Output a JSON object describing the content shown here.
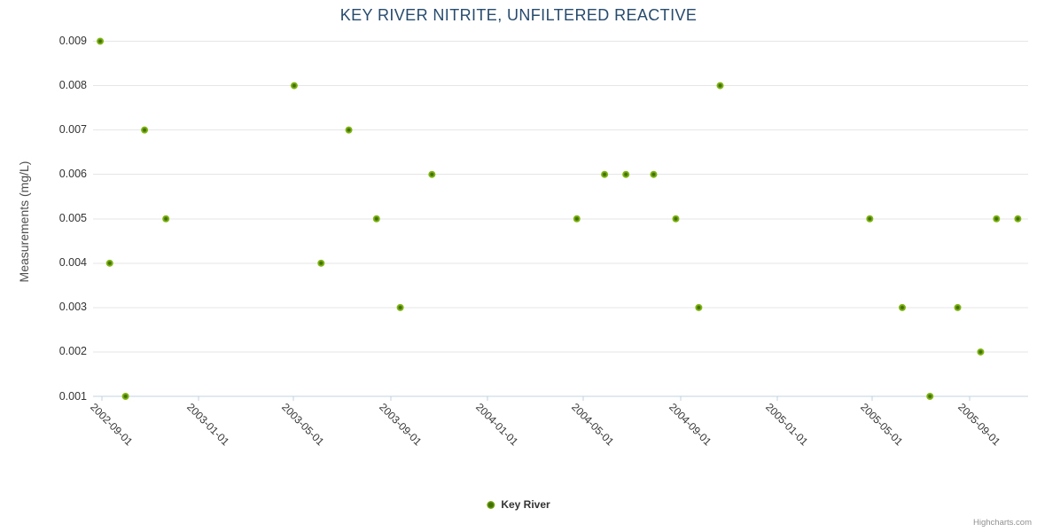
{
  "chart": {
    "credits": "Highcharts.com",
    "colors": {
      "title": "#274b6d",
      "label": "#333333",
      "axis_title": "#4d4d4d",
      "gridline": "#e6e6e6",
      "axis_line": "#c0d0e0",
      "tick_mark": "#c0d0e0",
      "credits": "#909090",
      "legend_text": "#333333",
      "marker_center": "#436f08",
      "marker_ring": "#77ad0b",
      "marker_edge": "#86bd1d"
    }
  },
  "chart_data": {
    "type": "scatter",
    "title": "KEY RIVER NITRITE, UNFILTERED REACTIVE",
    "xlabel": "",
    "ylabel": "Measurements (mg/L)",
    "ylim": [
      0.001,
      0.009
    ],
    "y_ticks": [
      0.001,
      0.002,
      0.003,
      0.004,
      0.005,
      0.006,
      0.007,
      0.008,
      0.009
    ],
    "x_range": [
      "2002-08-21",
      "2005-11-14"
    ],
    "x_ticks": [
      "2002-09-01",
      "2003-01-01",
      "2003-05-01",
      "2003-09-01",
      "2004-01-01",
      "2004-05-01",
      "2004-09-01",
      "2005-01-01",
      "2005-05-01",
      "2005-09-01"
    ],
    "grid": "horizontal",
    "legend_position": "bottom",
    "series": [
      {
        "name": "Key River",
        "points": [
          {
            "x": "2002-08-30",
            "y": 0.009
          },
          {
            "x": "2002-09-11",
            "y": 0.004
          },
          {
            "x": "2002-10-01",
            "y": 0.001
          },
          {
            "x": "2002-10-25",
            "y": 0.007
          },
          {
            "x": "2002-11-21",
            "y": 0.005
          },
          {
            "x": "2003-05-02",
            "y": 0.008
          },
          {
            "x": "2003-06-05",
            "y": 0.004
          },
          {
            "x": "2003-07-10",
            "y": 0.007
          },
          {
            "x": "2003-08-14",
            "y": 0.005
          },
          {
            "x": "2003-09-13",
            "y": 0.003
          },
          {
            "x": "2003-10-23",
            "y": 0.006
          },
          {
            "x": "2004-04-23",
            "y": 0.005
          },
          {
            "x": "2004-05-28",
            "y": 0.006
          },
          {
            "x": "2004-06-24",
            "y": 0.006
          },
          {
            "x": "2004-07-29",
            "y": 0.006
          },
          {
            "x": "2004-08-26",
            "y": 0.005
          },
          {
            "x": "2004-09-24",
            "y": 0.003
          },
          {
            "x": "2004-10-21",
            "y": 0.008
          },
          {
            "x": "2005-04-28",
            "y": 0.005
          },
          {
            "x": "2005-06-08",
            "y": 0.003
          },
          {
            "x": "2005-07-13",
            "y": 0.001
          },
          {
            "x": "2005-08-17",
            "y": 0.003
          },
          {
            "x": "2005-09-15",
            "y": 0.002
          },
          {
            "x": "2005-10-05",
            "y": 0.005
          },
          {
            "x": "2005-11-01",
            "y": 0.005
          }
        ]
      }
    ]
  }
}
